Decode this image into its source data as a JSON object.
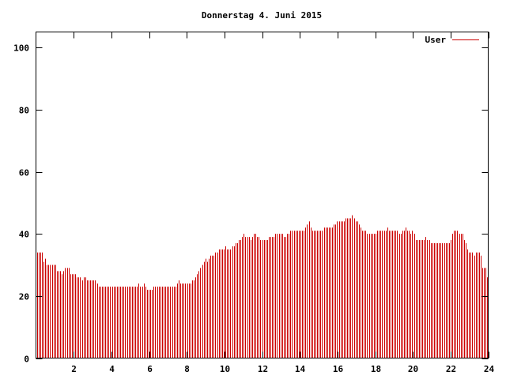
{
  "chart_data": {
    "type": "bar",
    "title": "Donnerstag 4. Juni 2015",
    "xlabel": "",
    "ylabel": "",
    "xlim": [
      0,
      24
    ],
    "ylim": [
      0,
      105
    ],
    "x_ticks": [
      "2",
      "4",
      "6",
      "8",
      "10",
      "12",
      "14",
      "16",
      "18",
      "20",
      "22",
      "24"
    ],
    "y_ticks": [
      "0",
      "20",
      "40",
      "60",
      "80",
      "100"
    ],
    "grid": false,
    "legend_position": "top-right",
    "series": [
      {
        "name": "User",
        "color": "#cc0000",
        "values": [
          34,
          34,
          34,
          34,
          31,
          32,
          30,
          30,
          30,
          30,
          30,
          30,
          28,
          28,
          28,
          27,
          28,
          29,
          29,
          29,
          27,
          27,
          27,
          27,
          26,
          26,
          26,
          25,
          26,
          26,
          25,
          25,
          25,
          25,
          25,
          25,
          24,
          23,
          23,
          23,
          23,
          23,
          23,
          23,
          23,
          23,
          23,
          23,
          23,
          23,
          23,
          23,
          23,
          23,
          23,
          23,
          23,
          23,
          23,
          23,
          23,
          24,
          23,
          23,
          24,
          23,
          22,
          22,
          22,
          22,
          23,
          23,
          23,
          23,
          23,
          23,
          23,
          23,
          23,
          23,
          23,
          23,
          23,
          23,
          24,
          25,
          24,
          24,
          24,
          24,
          24,
          24,
          24,
          25,
          25,
          26,
          27,
          28,
          29,
          30,
          31,
          32,
          31,
          32,
          33,
          33,
          33,
          34,
          34,
          35,
          35,
          35,
          35,
          36,
          35,
          35,
          35,
          36,
          36,
          37,
          37,
          38,
          38,
          39,
          40,
          39,
          39,
          39,
          38,
          39,
          40,
          40,
          39,
          39,
          38,
          38,
          38,
          38,
          38,
          39,
          39,
          39,
          39,
          40,
          40,
          40,
          40,
          40,
          39,
          39,
          40,
          40,
          41,
          41,
          41,
          41,
          41,
          41,
          41,
          41,
          41,
          42,
          43,
          44,
          42,
          41,
          41,
          41,
          41,
          41,
          41,
          41,
          42,
          42,
          42,
          42,
          42,
          42,
          43,
          43,
          44,
          44,
          44,
          44,
          44,
          45,
          45,
          45,
          45,
          46,
          45,
          44,
          44,
          43,
          42,
          41,
          41,
          41,
          40,
          40,
          40,
          40,
          40,
          40,
          41,
          41,
          41,
          41,
          41,
          41,
          42,
          41,
          41,
          41,
          41,
          41,
          41,
          40,
          40,
          41,
          41,
          42,
          41,
          41,
          40,
          41,
          40,
          38,
          38,
          38,
          38,
          38,
          38,
          39,
          38,
          38,
          37,
          37,
          37,
          37,
          37,
          37,
          37,
          37,
          37,
          37,
          37,
          37,
          38,
          40,
          41,
          41,
          41,
          40,
          40,
          40,
          38,
          37,
          35,
          34,
          34,
          34,
          33,
          34,
          34,
          34,
          33,
          29,
          29,
          29,
          26
        ]
      }
    ]
  }
}
